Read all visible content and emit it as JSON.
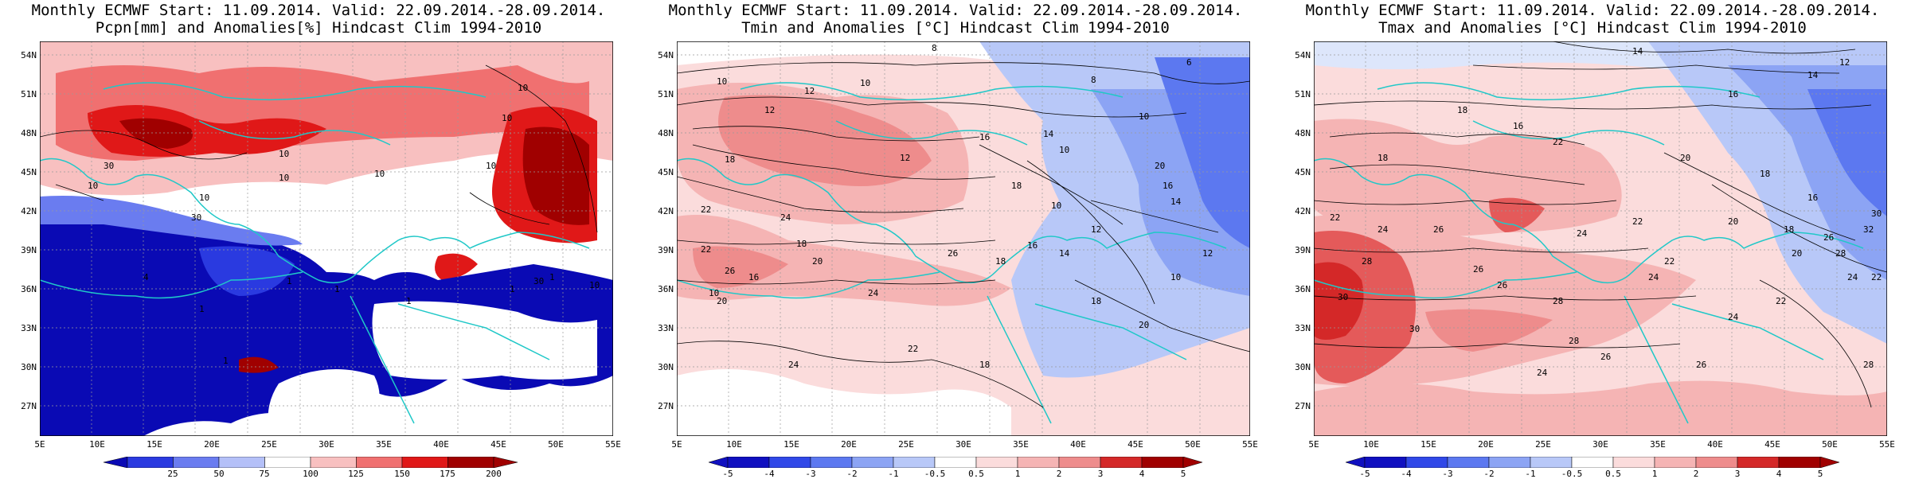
{
  "panels": [
    {
      "title_line1": "Monthly ECMWF Start: 11.09.2014. Valid: 22.09.2014.-28.09.2014.",
      "title_line2": "Pcpn[mm] and Anomalies[%] Hindcast Clim 1994-2010",
      "colorbar_ticks": [
        "25",
        "50",
        "75",
        "100",
        "125",
        "150",
        "175",
        "200"
      ]
    },
    {
      "title_line1": "Monthly ECMWF Start: 11.09.2014. Valid: 22.09.2014.-28.09.2014.",
      "title_line2": "Tmin and Anomalies [°C] Hindcast Clim 1994-2010",
      "colorbar_ticks": [
        "-5",
        "-4",
        "-3",
        "-2",
        "-1",
        "-0.5",
        "0.5",
        "1",
        "2",
        "3",
        "4",
        "5"
      ]
    },
    {
      "title_line1": "Monthly ECMWF Start: 11.09.2014. Valid: 22.09.2014.-28.09.2014.",
      "title_line2": "Tmax and Anomalies [°C] Hindcast Clim 1994-2010",
      "colorbar_ticks": [
        "-5",
        "-4",
        "-3",
        "-2",
        "-1",
        "-0.5",
        "0.5",
        "1",
        "2",
        "3",
        "4",
        "5"
      ]
    }
  ],
  "lat_labels": [
    "54N",
    "51N",
    "48N",
    "45N",
    "42N",
    "39N",
    "36N",
    "33N",
    "30N",
    "27N"
  ],
  "lon_labels": [
    "5E",
    "10E",
    "15E",
    "20E",
    "25E",
    "30E",
    "35E",
    "40E",
    "45E",
    "50E",
    "55E"
  ],
  "contour_labels": {
    "p1": [
      "10",
      "10",
      "10",
      "10",
      "30",
      "10",
      "30",
      "10",
      "4",
      "1",
      "1",
      "1",
      "1",
      "1",
      "10",
      "10",
      "1",
      "10",
      "30",
      "1"
    ],
    "p2": [
      "8",
      "10",
      "12",
      "10",
      "8",
      "6",
      "10",
      "12",
      "16",
      "14",
      "12",
      "10",
      "18",
      "20",
      "22",
      "24",
      "26",
      "18",
      "16",
      "14",
      "10",
      "12",
      "18",
      "20",
      "16",
      "10",
      "22",
      "24",
      "26",
      "20",
      "18",
      "16",
      "14",
      "12",
      "10",
      "18",
      "20",
      "24",
      "22",
      "18"
    ],
    "p3": [
      "14",
      "12",
      "14",
      "16",
      "18",
      "16",
      "18",
      "22",
      "20",
      "18",
      "16",
      "22",
      "24",
      "26",
      "28",
      "26",
      "24",
      "22",
      "20",
      "18",
      "30",
      "28",
      "26",
      "24",
      "22",
      "20",
      "30",
      "28",
      "26",
      "24",
      "22",
      "24",
      "26",
      "28",
      "30",
      "32",
      "28",
      "26",
      "24",
      "22"
    ]
  },
  "colors": {
    "precip": [
      "#0a0ab4",
      "#2a3ae0",
      "#6a7cf0",
      "#b4c0f8",
      "#ffffff",
      "#f8c0c0",
      "#f07070",
      "#e01818",
      "#a00000"
    ],
    "temp": [
      "#1010c0",
      "#3048e8",
      "#5c78f0",
      "#8ca4f4",
      "#b8c8f8",
      "#dde6fb",
      "#ffffff",
      "#fbdcdc",
      "#f5b4b4",
      "#ee8c8c",
      "#e45a5a",
      "#d42828",
      "#a00000"
    ],
    "coast": "#20c8c8",
    "contour": "#000000"
  }
}
